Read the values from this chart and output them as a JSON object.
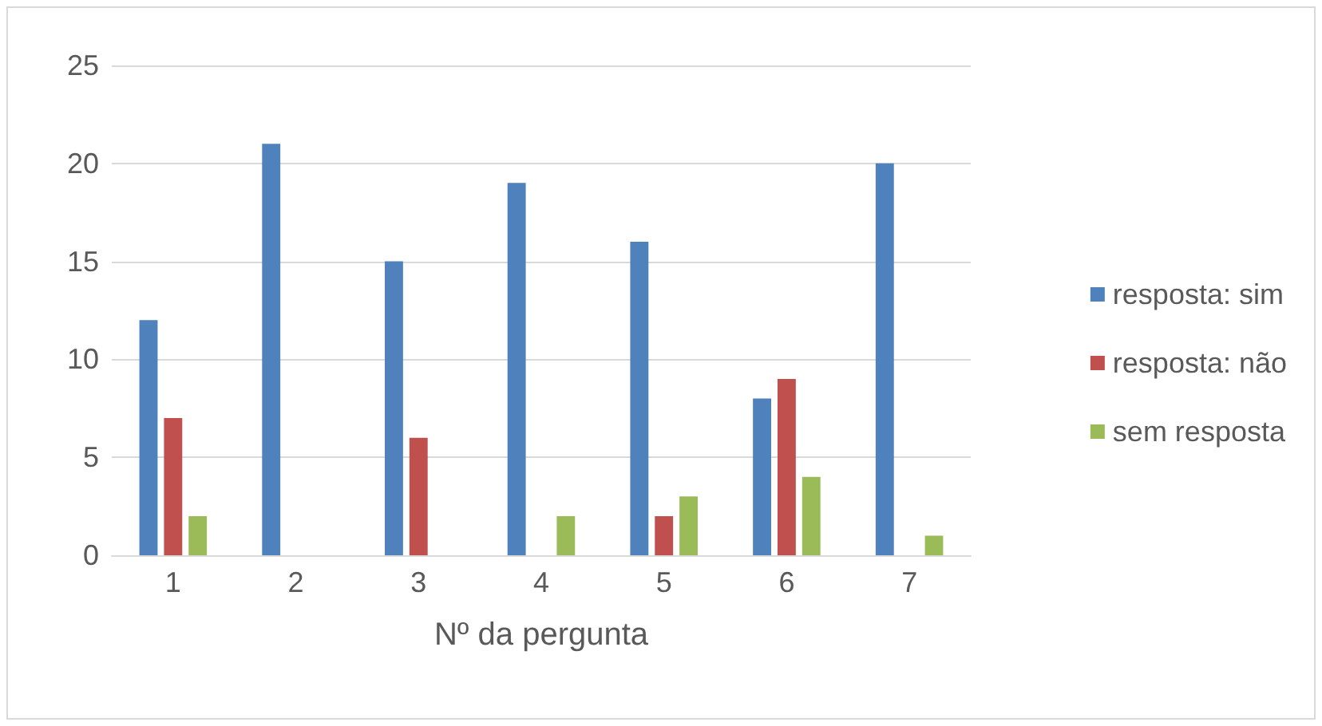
{
  "chart_data": {
    "type": "bar",
    "xlabel": "Nº da pergunta",
    "categories": [
      "1",
      "2",
      "3",
      "4",
      "5",
      "6",
      "7"
    ],
    "series": [
      {
        "name": "resposta: sim",
        "color": "#4f81bd",
        "values": [
          12,
          21,
          15,
          19,
          16,
          8,
          20
        ]
      },
      {
        "name": "resposta: não",
        "color": "#c0504d",
        "values": [
          7,
          0,
          6,
          0,
          2,
          9,
          0
        ]
      },
      {
        "name": "sem resposta",
        "color": "#9bbb59",
        "values": [
          2,
          0,
          0,
          2,
          3,
          4,
          1
        ]
      }
    ],
    "ylim": [
      0,
      25
    ],
    "yticks": [
      0,
      5,
      10,
      15,
      20,
      25
    ],
    "grid": "y",
    "legend": "right"
  }
}
